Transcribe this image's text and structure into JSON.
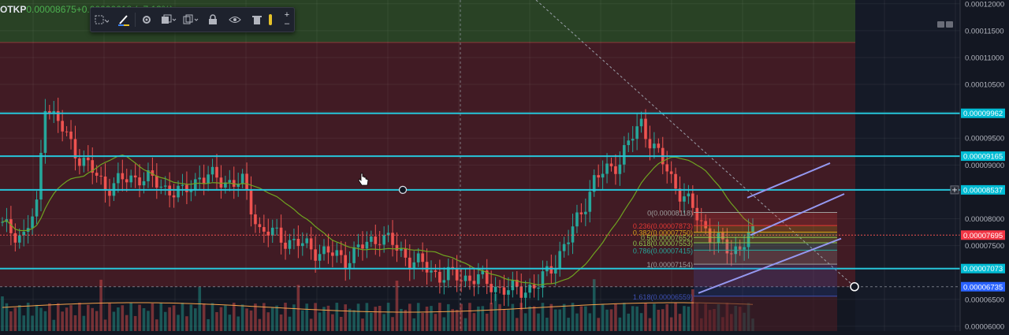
{
  "legend": {
    "symbol": "OTKP",
    "open": "0.00008675",
    "change": "+0.00000618 (+7.13%)"
  },
  "toolbar": {
    "tools": [
      "drawing-mode-icon",
      "brush-icon",
      "settings-icon",
      "visual-order-icon",
      "clone-icon",
      "lock-icon",
      "visibility-icon",
      "delete-icon"
    ],
    "zoom_in": "+",
    "zoom_out": "–"
  },
  "colors": {
    "background": "#131722",
    "up": "#26a69a",
    "down": "#ef5350",
    "hline": "#26c6da",
    "sma": "#6fa321",
    "channel": "#9598f0",
    "zone_green": "#2e4a26",
    "zone_red": "#4a1c24",
    "price_tag": "#f23645",
    "axis_tag": "#00bcd4"
  },
  "chart_data": {
    "type": "candlestick",
    "y_axis": {
      "ticks": [
        "0.00012000",
        "0.00011500",
        "0.00011000",
        "0.00010500",
        "0.00010000",
        "0.00009500",
        "0.00009000",
        "0.00008000",
        "0.00007500",
        "0.00006500",
        "0.00006000"
      ],
      "range": [
        5.91e-05,
        0.0001207
      ]
    },
    "horizontal_levels": [
      {
        "label": "0.00009962",
        "value": 9.962e-05
      },
      {
        "label": "0.00009165",
        "value": 9.165e-05
      },
      {
        "label": "0.00008537",
        "value": 8.537e-05
      },
      {
        "label": "0.00007073",
        "value": 7.073e-05
      }
    ],
    "tags": {
      "last_price": {
        "label": "0.00007695",
        "value": 7.695e-05
      },
      "crosshair": {
        "label": "0.00006735",
        "value": 6.735e-05
      }
    },
    "zones": {
      "green": {
        "top": 0.0001207,
        "bottom": 0.0001128
      },
      "red": {
        "top": 0.0001128,
        "bottom": 6.735e-05
      }
    },
    "fibonacci": {
      "levels": [
        {
          "label": "0(0.00008118)",
          "value": 8.118e-05,
          "color": "#9e9e9e"
        },
        {
          "label": "0.236(0.00007873)",
          "value": 7.873e-05,
          "color": "#e53935"
        },
        {
          "label": "0.382(0.00007750)",
          "value": 7.75e-05,
          "color": "#d4a017"
        },
        {
          "label": "0.5(0.00007652)",
          "value": 7.652e-05,
          "color": "#8bc34a"
        },
        {
          "label": "0.618(0.00007553)",
          "value": 7.553e-05,
          "color": "#8bc34a"
        },
        {
          "label": "0.786(0.00007415)",
          "value": 7.415e-05,
          "color": "#26a69a"
        },
        {
          "label": "1(0.00007154)",
          "value": 7.154e-05,
          "color": "#9e9e9e"
        },
        {
          "label": "1.618(0.00006559)",
          "value": 6.559e-05,
          "color": "#3f51b5"
        }
      ]
    },
    "channel": {
      "upper": [
        [
          8.537e-05,
          9.035e-05
        ],
        [
          7.695e-05,
          8.462e-05
        ]
      ],
      "lower": [
        [
          6.616e-05,
          7.63e-05
        ],
        [
          7.154e-05,
          7.695e-05
        ]
      ]
    },
    "candle_count": 176,
    "volume_scale": "relative"
  }
}
